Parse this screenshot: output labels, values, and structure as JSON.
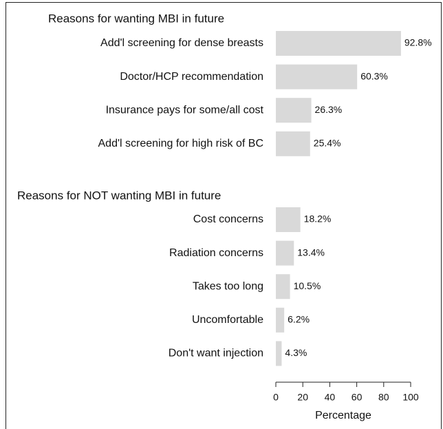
{
  "chart_data": {
    "type": "bar",
    "orientation": "horizontal",
    "color": "#d9d9d9",
    "groups": [
      {
        "title": "Reasons for wanting MBI in future",
        "categories": [
          "Add'l screening for dense breasts",
          "Doctor/HCP recommendation",
          "Insurance pays for some/all cost",
          "Add'l screening for high risk of BC"
        ],
        "values": [
          92.8,
          60.3,
          26.3,
          25.4
        ],
        "value_labels": [
          "92.8%",
          "60.3%",
          "26.3%",
          "25.4%"
        ]
      },
      {
        "title": "Reasons for NOT wanting MBI in future",
        "categories": [
          "Cost concerns",
          "Radiation concerns",
          "Takes too long",
          "Uncomfortable",
          "Don't want injection"
        ],
        "values": [
          18.2,
          13.4,
          10.5,
          6.2,
          4.3
        ],
        "value_labels": [
          "18.2%",
          "13.4%",
          "10.5%",
          "6.2%",
          "4.3%"
        ]
      }
    ],
    "xlabel": "Percentage",
    "xlim": [
      0,
      100
    ],
    "xticks": [
      0,
      20,
      40,
      60,
      80,
      100
    ]
  }
}
